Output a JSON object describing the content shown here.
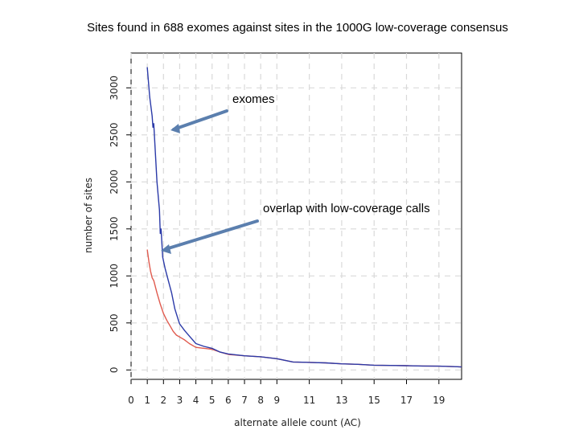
{
  "slide": {
    "title": "Sites found in 688 exomes against sites in the 1000G low-coverage consensus",
    "annotations": [
      {
        "text": "exomes",
        "target_series": "exomes"
      },
      {
        "text": "overlap with low-coverage calls",
        "target_series": "overlap with low-coverage calls"
      }
    ],
    "arrow_color": "#5b7fae"
  },
  "chart_data": {
    "type": "line",
    "title": "",
    "xlabel": "alternate allele count (AC)",
    "ylabel": "number of sites",
    "xlim": [
      0,
      20.4
    ],
    "ylim": [
      -100,
      3370
    ],
    "x_ticks": [
      0,
      1,
      2,
      3,
      4,
      5,
      6,
      7,
      8,
      9,
      11,
      13,
      15,
      17,
      19
    ],
    "y_ticks": [
      0,
      500,
      1000,
      1500,
      2000,
      2500,
      3000
    ],
    "grid": true,
    "legend": "none",
    "series": [
      {
        "name": "exomes",
        "color": "#2b3aa8",
        "x": [
          1,
          1.15,
          1.3,
          1.35,
          1.4,
          1.6,
          1.75,
          1.8,
          1.85,
          1.95,
          2.1,
          2.3,
          2.5,
          2.7,
          2.9,
          3.0,
          3.3,
          3.6,
          4.0,
          4.5,
          5.0,
          5.5,
          6.0,
          7.0,
          8.0,
          9.0,
          10.0,
          11.0,
          12.0,
          13.0,
          14.0,
          15.0,
          16.0,
          17.0,
          18.0,
          19.0,
          20.0,
          20.4
        ],
        "values": [
          3220,
          2900,
          2700,
          2580,
          2620,
          2000,
          1700,
          1450,
          1500,
          1200,
          1080,
          950,
          820,
          650,
          540,
          490,
          420,
          360,
          280,
          250,
          230,
          190,
          170,
          150,
          140,
          120,
          85,
          80,
          75,
          65,
          60,
          50,
          48,
          45,
          42,
          40,
          35,
          32
        ]
      },
      {
        "name": "overlap with low-coverage calls",
        "color": "#e05a4e",
        "x": [
          1,
          1.1,
          1.2,
          1.3,
          1.4,
          1.6,
          1.8,
          2.0,
          2.2,
          2.4,
          2.6,
          2.8,
          3.0,
          3.3,
          3.6,
          4.0,
          4.5,
          5.0,
          5.5,
          6.0,
          7.0,
          8.0,
          9.0,
          10.0,
          11.0,
          12.0,
          13.0,
          14.0,
          15.0,
          16.0,
          17.0,
          18.0,
          19.0,
          20.0,
          20.4
        ],
        "values": [
          1280,
          1150,
          1050,
          980,
          950,
          820,
          700,
          600,
          530,
          470,
          410,
          370,
          350,
          320,
          280,
          240,
          230,
          220,
          190,
          165,
          150,
          140,
          120,
          85,
          80,
          75,
          65,
          60,
          50,
          48,
          45,
          42,
          40,
          35,
          32
        ]
      }
    ]
  }
}
